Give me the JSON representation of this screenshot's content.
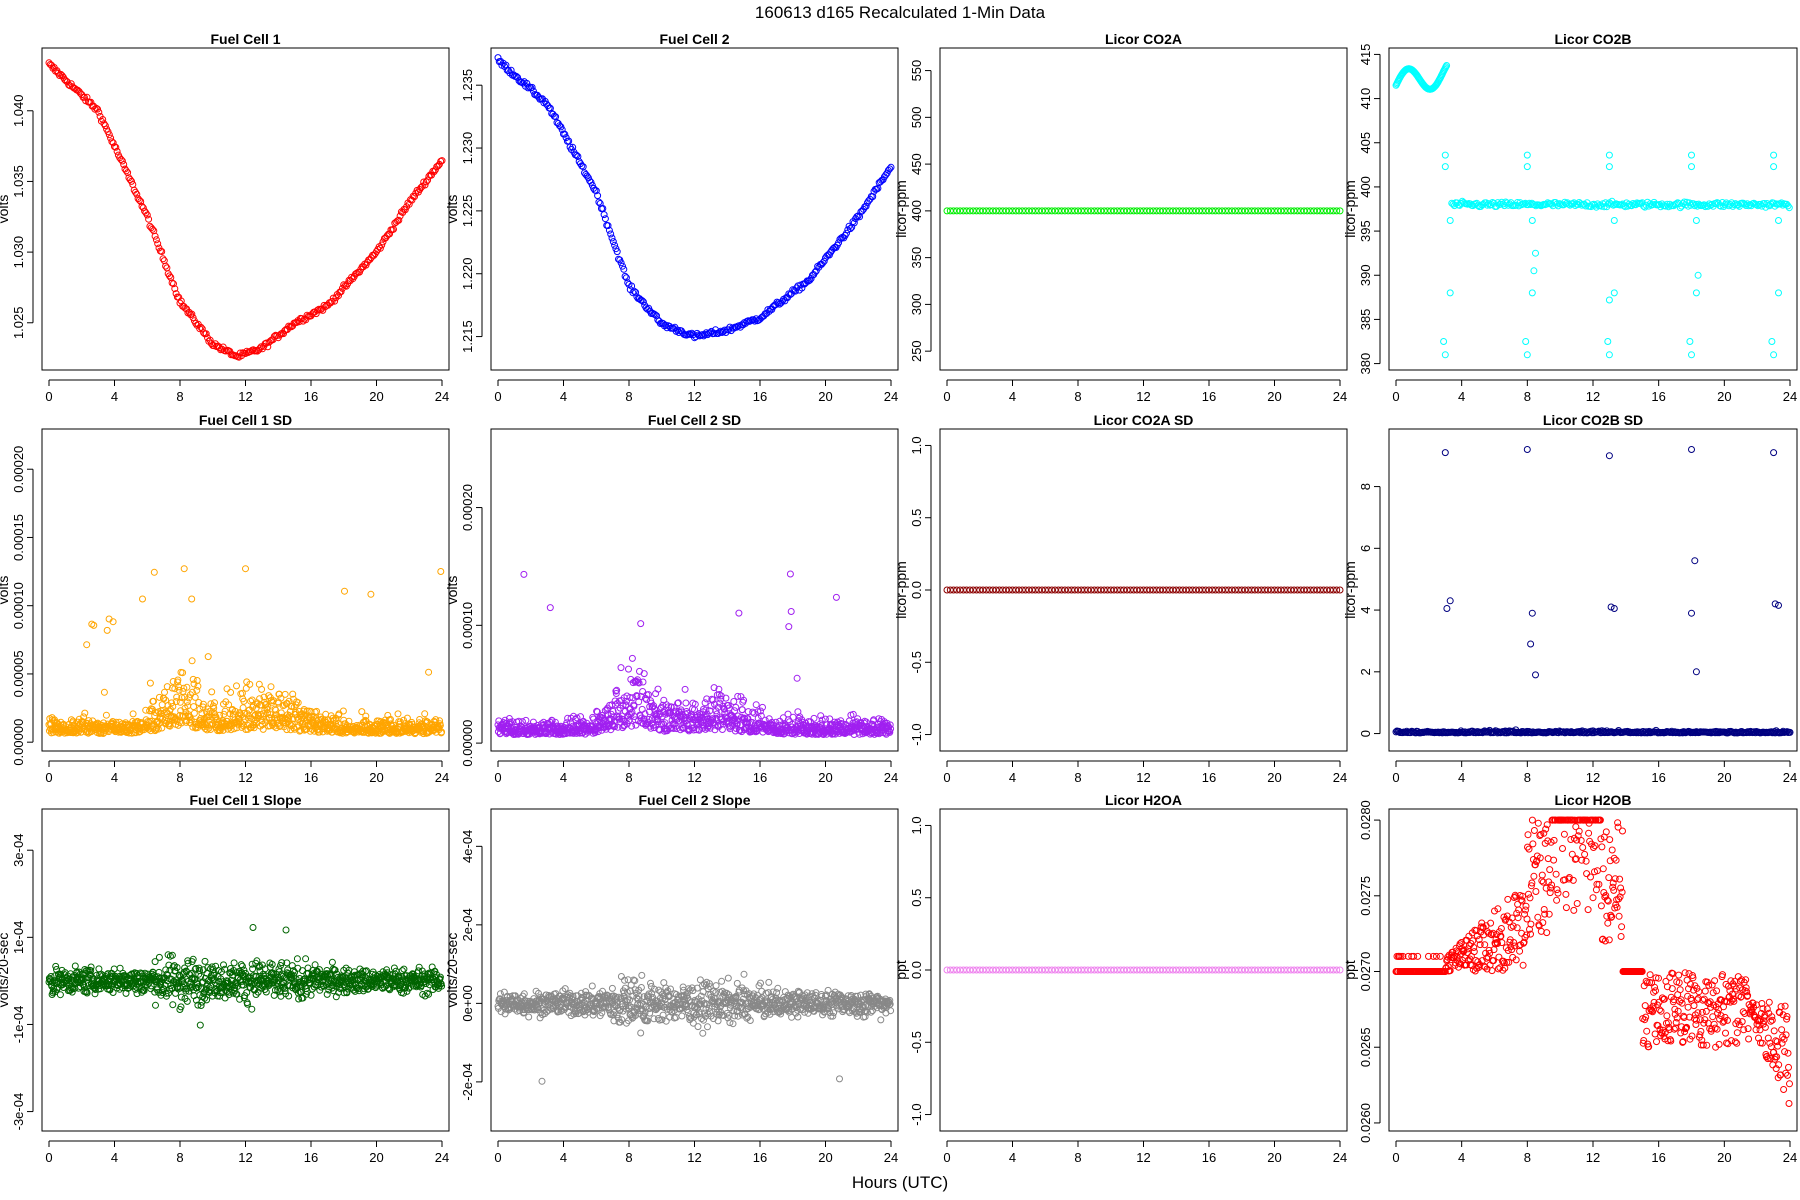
{
  "figure": {
    "title": "160613   d165   Recalculated 1-Min Data",
    "xlabel": "Hours (UTC)"
  },
  "chart_data": [
    {
      "type": "scatter",
      "title": "Fuel Cell 1",
      "ylabel": "volts",
      "color": "#ff0000",
      "xlim": [
        0,
        24
      ],
      "ylim": [
        1.0218,
        1.0443
      ],
      "xticks": [
        0,
        4,
        8,
        12,
        16,
        20,
        24
      ],
      "yticks": [
        1.025,
        1.03,
        1.035,
        1.04
      ],
      "ytick_labels": [
        "1.025",
        "1.030",
        "1.035",
        "1.040"
      ],
      "pattern": "dip",
      "anchors": [
        [
          0,
          1.0433
        ],
        [
          3,
          1.04
        ],
        [
          6,
          1.0325
        ],
        [
          8,
          1.0265
        ],
        [
          10,
          1.0235
        ],
        [
          11.5,
          1.0226
        ],
        [
          13,
          1.0232
        ],
        [
          15,
          1.025
        ],
        [
          17,
          1.0262
        ],
        [
          20,
          1.03
        ],
        [
          22,
          1.0335
        ],
        [
          24,
          1.0365
        ]
      ]
    },
    {
      "type": "scatter",
      "title": "Fuel Cell 2",
      "ylabel": "volts",
      "color": "#0000ff",
      "xlim": [
        0,
        24
      ],
      "ylim": [
        1.2125,
        1.2378
      ],
      "xticks": [
        0,
        4,
        8,
        12,
        16,
        20,
        24
      ],
      "yticks": [
        1.215,
        1.22,
        1.225,
        1.23,
        1.235
      ],
      "ytick_labels": [
        "1.215",
        "1.220",
        "1.225",
        "1.230",
        "1.235"
      ],
      "pattern": "dip",
      "anchors": [
        [
          0,
          1.237
        ],
        [
          3,
          1.2335
        ],
        [
          6,
          1.2265
        ],
        [
          8,
          1.219
        ],
        [
          10,
          1.216
        ],
        [
          12,
          1.215
        ],
        [
          14,
          1.2155
        ],
        [
          16,
          1.2165
        ],
        [
          19,
          1.2195
        ],
        [
          22,
          1.2245
        ],
        [
          24,
          1.2285
        ]
      ]
    },
    {
      "type": "scatter",
      "title": "Licor CO2A",
      "ylabel": "licor-ppm",
      "color": "#00ee00",
      "xlim": [
        0,
        24
      ],
      "ylim": [
        232,
        572
      ],
      "xticks": [
        0,
        4,
        8,
        12,
        16,
        20,
        24
      ],
      "yticks": [
        250,
        300,
        350,
        400,
        450,
        500,
        550
      ],
      "ytick_labels": [
        "250",
        "300",
        "350",
        "400",
        "450",
        "500",
        "550"
      ],
      "pattern": "flat",
      "value": 400
    },
    {
      "type": "scatter",
      "title": "Licor CO2B",
      "ylabel": "licor-ppm",
      "color": "#00ffff",
      "xlim": [
        0,
        24
      ],
      "ylim": [
        379.5,
        415.5
      ],
      "xticks": [
        0,
        4,
        8,
        12,
        16,
        20,
        24
      ],
      "yticks": [
        380,
        385,
        390,
        395,
        400,
        405,
        410,
        415
      ],
      "ytick_labels": [
        "380",
        "385",
        "390",
        "395",
        "400",
        "405",
        "410",
        "415"
      ],
      "pattern": "co2b"
    },
    {
      "type": "scatter",
      "title": "Fuel Cell 1 SD",
      "ylabel": "volts",
      "color": "#ffa500",
      "xlim": [
        0,
        24
      ],
      "ylim": [
        -5e-06,
        0.000228
      ],
      "xticks": [
        0,
        4,
        8,
        12,
        16,
        20,
        24
      ],
      "yticks": [
        0,
        5e-05,
        0.0001,
        0.00015,
        0.0002
      ],
      "ytick_labels": [
        "0.00000",
        "0.00005",
        "0.00010",
        "0.00015",
        "0.00020"
      ],
      "pattern": "sd"
    },
    {
      "type": "scatter",
      "title": "Fuel Cell 2 SD",
      "ylabel": "volts",
      "color": "#a020f0",
      "xlim": [
        0,
        24
      ],
      "ylim": [
        -5e-06,
        0.000265
      ],
      "xticks": [
        0,
        4,
        8,
        12,
        16,
        20,
        24
      ],
      "yticks": [
        0,
        0.0001,
        0.0002
      ],
      "ytick_labels": [
        "0.00000",
        "0.00010",
        "0.00020"
      ],
      "pattern": "sd"
    },
    {
      "type": "scatter",
      "title": "Licor CO2A SD",
      "ylabel": "licor-ppm",
      "color": "#8b0000",
      "xlim": [
        0,
        24
      ],
      "ylim": [
        -1.1,
        1.1
      ],
      "xticks": [
        0,
        4,
        8,
        12,
        16,
        20,
        24
      ],
      "yticks": [
        -1.0,
        -0.5,
        0.0,
        0.5,
        1.0
      ],
      "ytick_labels": [
        "-1.0",
        "-0.5",
        "0.0",
        "0.5",
        "1.0"
      ],
      "pattern": "flat",
      "value": 0
    },
    {
      "type": "scatter",
      "title": "Licor CO2B SD",
      "ylabel": "licor-ppm",
      "color": "#000080",
      "xlim": [
        0,
        24
      ],
      "ylim": [
        -0.5,
        9.8
      ],
      "xticks": [
        0,
        4,
        8,
        12,
        16,
        20,
        24
      ],
      "yticks": [
        0,
        2,
        4,
        6,
        8
      ],
      "ytick_labels": [
        "0",
        "2",
        "4",
        "6",
        "8"
      ],
      "pattern": "co2bsd"
    },
    {
      "type": "scatter",
      "title": "Fuel Cell 1 Slope",
      "ylabel": "volts/20-sec",
      "color": "#006400",
      "xlim": [
        0,
        24
      ],
      "ylim": [
        -0.00034,
        0.00039
      ],
      "xticks": [
        0,
        4,
        8,
        12,
        16,
        20,
        24
      ],
      "yticks": [
        -0.0003,
        -0.0001,
        0.0001,
        0.0003
      ],
      "ytick_labels": [
        "-3e-04",
        "-1e-04",
        "1e-04",
        "3e-04"
      ],
      "pattern": "slope"
    },
    {
      "type": "scatter",
      "title": "Fuel Cell 2 Slope",
      "ylabel": "volts/20-sec",
      "color": "#888888",
      "xlim": [
        0,
        24
      ],
      "ylim": [
        -0.00032,
        0.00049
      ],
      "xticks": [
        0,
        4,
        8,
        12,
        16,
        20,
        24
      ],
      "yticks": [
        -0.0002,
        0,
        0.0002,
        0.0004
      ],
      "ytick_labels": [
        "-2e-04",
        "0e+00",
        "2e-04",
        "4e-04"
      ],
      "pattern": "slope"
    },
    {
      "type": "scatter",
      "title": "Licor H2OA",
      "ylabel": "ppt",
      "color": "#ee82ee",
      "xlim": [
        0,
        24
      ],
      "ylim": [
        -1.1,
        1.1
      ],
      "xticks": [
        0,
        4,
        8,
        12,
        16,
        20,
        24
      ],
      "yticks": [
        -1.0,
        -0.5,
        0.0,
        0.5,
        1.0
      ],
      "ytick_labels": [
        "-1.0",
        "-0.5",
        "0.0",
        "0.5",
        "1.0"
      ],
      "pattern": "flat",
      "value": 0
    },
    {
      "type": "scatter",
      "title": "Licor H2OB",
      "ylabel": "ppt",
      "color": "#ff0000",
      "xlim": [
        0,
        24
      ],
      "ylim": [
        0.02596,
        0.02806
      ],
      "xticks": [
        0,
        4,
        8,
        12,
        16,
        20,
        24
      ],
      "yticks": [
        0.026,
        0.0265,
        0.027,
        0.0275,
        0.028
      ],
      "ytick_labels": [
        "0.0260",
        "0.0265",
        "0.0270",
        "0.0275",
        "0.0280"
      ],
      "pattern": "h2ob"
    }
  ]
}
